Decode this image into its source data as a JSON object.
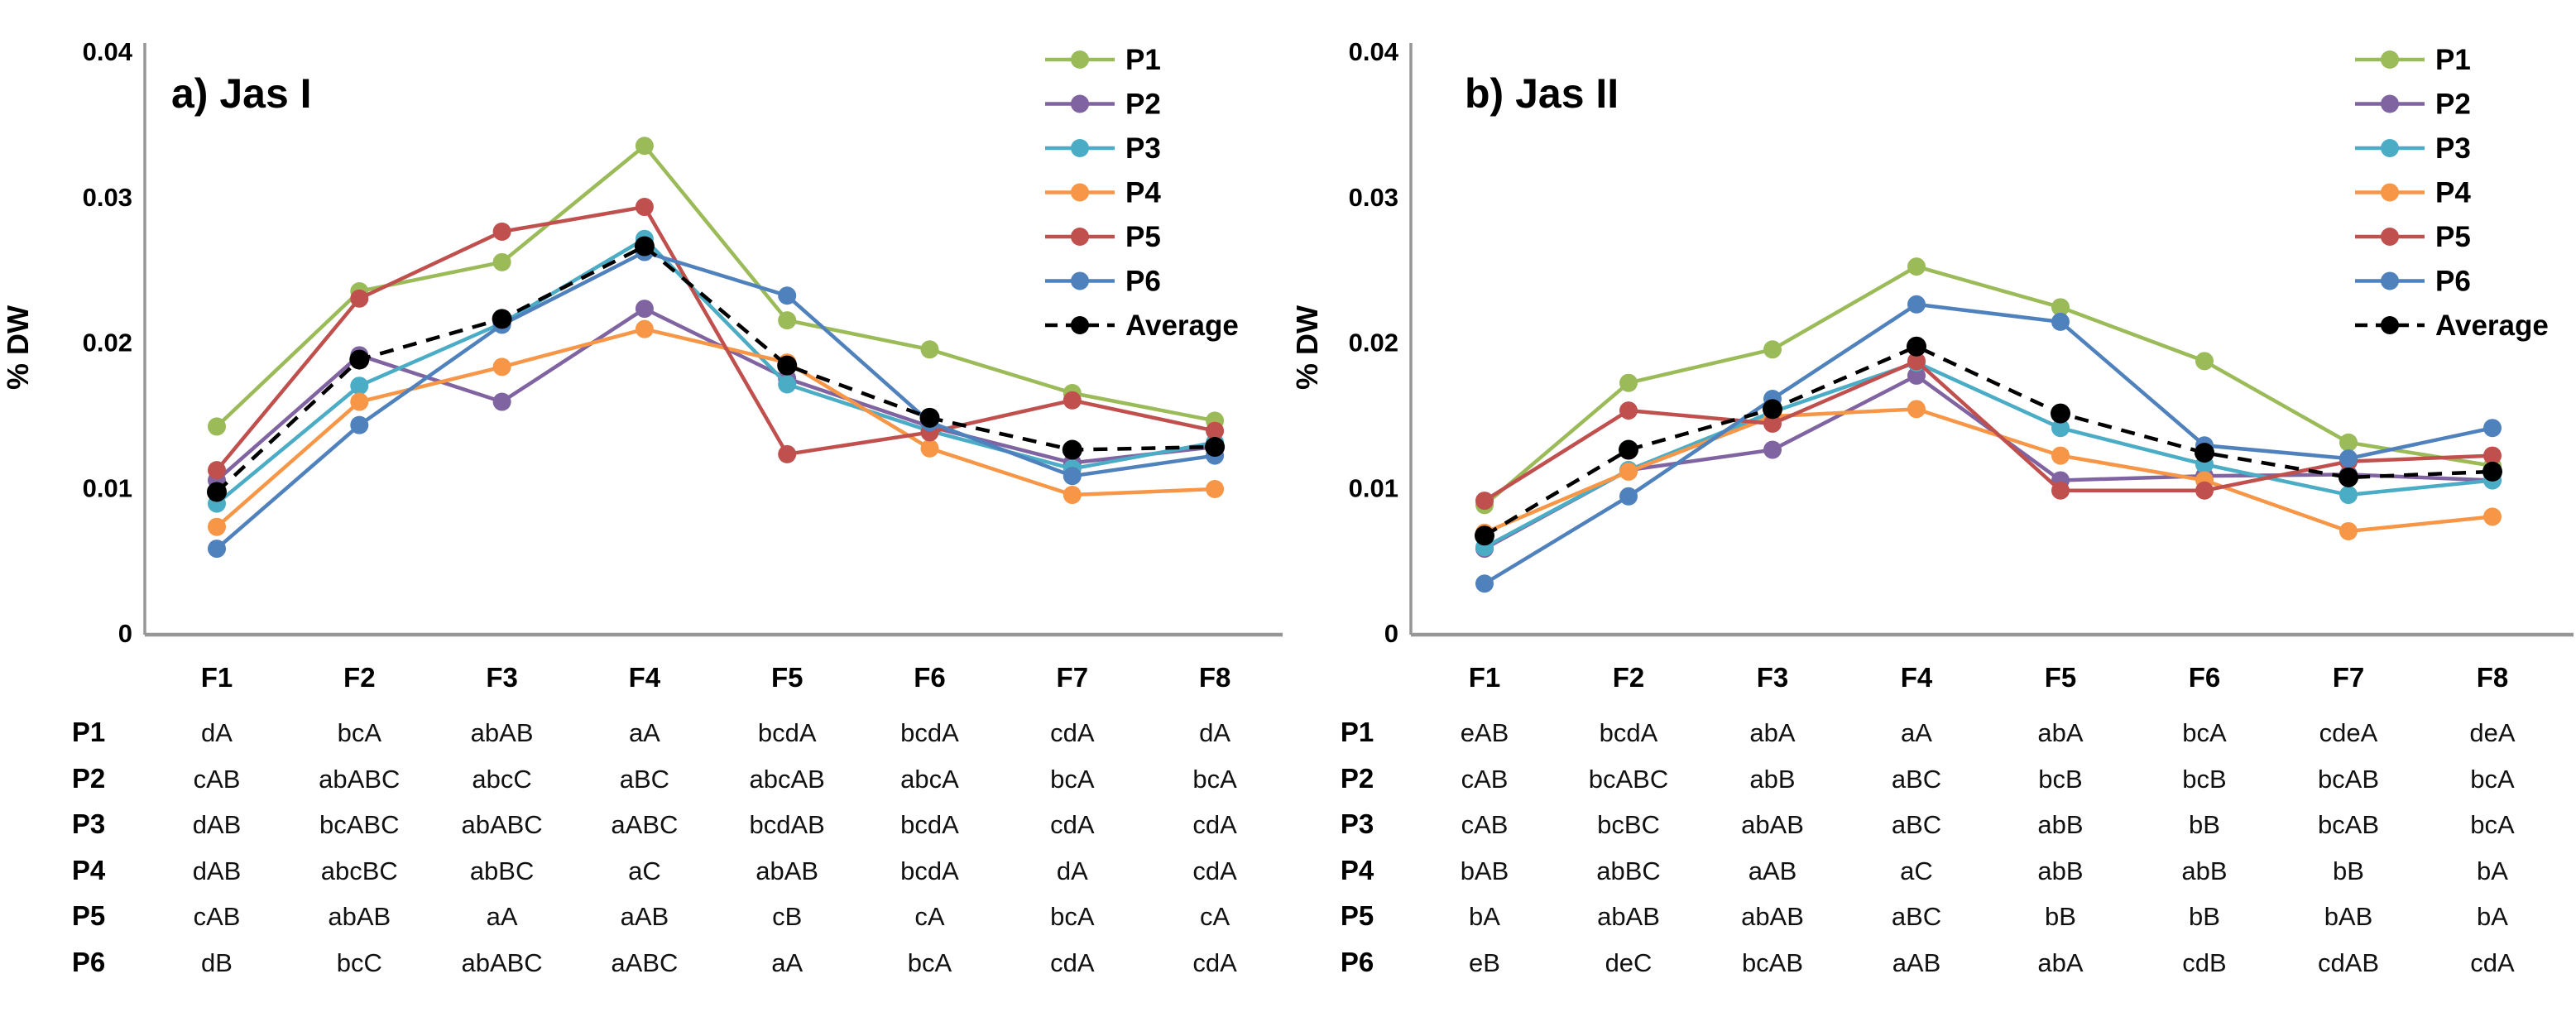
{
  "figure": {
    "background": "#ffffff",
    "ylabel": "% DW",
    "y_ticks": [
      "0.04",
      "0.03",
      "0.02",
      "0.01",
      "0"
    ],
    "categories": [
      "F1",
      "F2",
      "F3",
      "F4",
      "F5",
      "F6",
      "F7",
      "F8"
    ],
    "legend_labels": [
      "P1",
      "P2",
      "P3",
      "P4",
      "P5",
      "P6",
      "Average"
    ],
    "series_colors": {
      "P1": "#9BBB59",
      "P2": "#8064A2",
      "P3": "#4BACC6",
      "P4": "#F79646",
      "P5": "#C0504D",
      "P6": "#4F81BD",
      "Average": "#000000"
    },
    "axis_color": "#969696"
  },
  "chart_data": [
    {
      "type": "line",
      "title": "a) Jas I",
      "xlabel": "",
      "ylabel": "% DW",
      "ylim": [
        0,
        0.04
      ],
      "y_tick_values": [
        0.04,
        0.03,
        0.02,
        0.01,
        0
      ],
      "grid": false,
      "legend_position": "top-right",
      "categories": [
        "F1",
        "F2",
        "F3",
        "F4",
        "F5",
        "F6",
        "F7",
        "F8"
      ],
      "series": [
        {
          "name": "P1",
          "color": "#9BBB59",
          "dashed": false,
          "values": [
            0.0142,
            0.0235,
            0.0255,
            0.0335,
            0.0215,
            0.0195,
            0.0165,
            0.0146
          ]
        },
        {
          "name": "P2",
          "color": "#8064A2",
          "dashed": false,
          "values": [
            0.0105,
            0.0191,
            0.0159,
            0.0223,
            0.0175,
            0.0142,
            0.0117,
            0.0128
          ]
        },
        {
          "name": "P3",
          "color": "#4BACC6",
          "dashed": false,
          "values": [
            0.0089,
            0.017,
            0.0213,
            0.0271,
            0.0171,
            0.0139,
            0.0113,
            0.0131
          ]
        },
        {
          "name": "P4",
          "color": "#F79646",
          "dashed": false,
          "values": [
            0.0073,
            0.0159,
            0.0183,
            0.0209,
            0.0186,
            0.0127,
            0.0095,
            0.0099
          ]
        },
        {
          "name": "P5",
          "color": "#C0504D",
          "dashed": false,
          "values": [
            0.0112,
            0.023,
            0.0276,
            0.0293,
            0.0123,
            0.0138,
            0.016,
            0.0139
          ]
        },
        {
          "name": "P6",
          "color": "#4F81BD",
          "dashed": false,
          "values": [
            0.0058,
            0.0143,
            0.0212,
            0.0262,
            0.0232,
            0.0145,
            0.0108,
            0.0122
          ]
        },
        {
          "name": "Average",
          "color": "#000000",
          "dashed": true,
          "values": [
            0.0097,
            0.0188,
            0.0216,
            0.0266,
            0.0184,
            0.0148,
            0.0126,
            0.0128
          ]
        }
      ],
      "significance_table": {
        "rows": [
          {
            "label": "P1",
            "cells": [
              "dA",
              "bcA",
              "abAB",
              "aA",
              "bcdA",
              "bcdA",
              "cdA",
              "dA"
            ]
          },
          {
            "label": "P2",
            "cells": [
              "cAB",
              "abABC",
              "abcC",
              "aBC",
              "abcAB",
              "abcA",
              "bcA",
              "bcA"
            ]
          },
          {
            "label": "P3",
            "cells": [
              "dAB",
              "bcABC",
              "abABC",
              "aABC",
              "bcdAB",
              "bcdA",
              "cdA",
              "cdA"
            ]
          },
          {
            "label": "P4",
            "cells": [
              "dAB",
              "abcBC",
              "abBC",
              "aC",
              "abAB",
              "bcdA",
              "dA",
              "cdA"
            ]
          },
          {
            "label": "P5",
            "cells": [
              "cAB",
              "abAB",
              "aA",
              "aAB",
              "cB",
              "cA",
              "bcA",
              "cA"
            ]
          },
          {
            "label": "P6",
            "cells": [
              "dB",
              "bcC",
              "abABC",
              "aABC",
              "aA",
              "bcA",
              "cdA",
              "cdA"
            ]
          }
        ]
      }
    },
    {
      "type": "line",
      "title": "b) Jas II",
      "xlabel": "",
      "ylabel": "% DW",
      "ylim": [
        0,
        0.04
      ],
      "y_tick_values": [
        0.04,
        0.03,
        0.02,
        0.01,
        0
      ],
      "grid": false,
      "legend_position": "top-right",
      "categories": [
        "F1",
        "F2",
        "F3",
        "F4",
        "F5",
        "F6",
        "F7",
        "F8"
      ],
      "series": [
        {
          "name": "P1",
          "color": "#9BBB59",
          "dashed": false,
          "values": [
            0.0088,
            0.0172,
            0.0195,
            0.0252,
            0.0224,
            0.0187,
            0.0131,
            0.0115
          ]
        },
        {
          "name": "P2",
          "color": "#8064A2",
          "dashed": false,
          "values": [
            0.0058,
            0.0112,
            0.0126,
            0.0177,
            0.0105,
            0.0108,
            0.0109,
            0.0105
          ]
        },
        {
          "name": "P3",
          "color": "#4BACC6",
          "dashed": false,
          "values": [
            0.0059,
            0.0112,
            0.0152,
            0.0186,
            0.0141,
            0.0116,
            0.0095,
            0.0105
          ]
        },
        {
          "name": "P4",
          "color": "#F79646",
          "dashed": false,
          "values": [
            0.0069,
            0.0111,
            0.0149,
            0.0154,
            0.0122,
            0.0105,
            0.007,
            0.008
          ]
        },
        {
          "name": "P5",
          "color": "#C0504D",
          "dashed": false,
          "values": [
            0.0091,
            0.0153,
            0.0144,
            0.0187,
            0.0098,
            0.0098,
            0.0118,
            0.0122
          ]
        },
        {
          "name": "P6",
          "color": "#4F81BD",
          "dashed": false,
          "values": [
            0.0034,
            0.0094,
            0.0161,
            0.0226,
            0.0214,
            0.0129,
            0.012,
            0.0141
          ]
        },
        {
          "name": "Average",
          "color": "#000000",
          "dashed": true,
          "values": [
            0.0067,
            0.0126,
            0.0154,
            0.0197,
            0.0151,
            0.0124,
            0.0107,
            0.0111
          ]
        }
      ],
      "significance_table": {
        "rows": [
          {
            "label": "P1",
            "cells": [
              "eAB",
              "bcdA",
              "abA",
              "aA",
              "abA",
              "bcA",
              "cdeA",
              "deA"
            ]
          },
          {
            "label": "P2",
            "cells": [
              "cAB",
              "bcABC",
              "abB",
              "aBC",
              "bcB",
              "bcB",
              "bcAB",
              "bcA"
            ]
          },
          {
            "label": "P3",
            "cells": [
              "cAB",
              "bcBC",
              "abAB",
              "aBC",
              "abB",
              "bB",
              "bcAB",
              "bcA"
            ]
          },
          {
            "label": "P4",
            "cells": [
              "bAB",
              "abBC",
              "aAB",
              "aC",
              "abB",
              "abB",
              "bB",
              "bA"
            ]
          },
          {
            "label": "P5",
            "cells": [
              "bA",
              "abAB",
              "abAB",
              "aBC",
              "bB",
              "bB",
              "bAB",
              "bA"
            ]
          },
          {
            "label": "P6",
            "cells": [
              "eB",
              "deC",
              "bcAB",
              "aAB",
              "abA",
              "cdB",
              "cdAB",
              "cdA"
            ]
          }
        ]
      }
    }
  ]
}
